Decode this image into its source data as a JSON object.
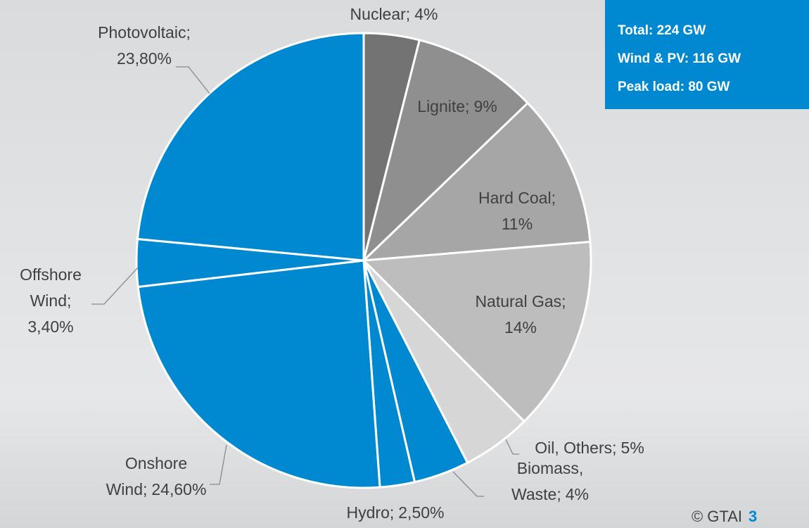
{
  "chart_data": {
    "type": "pie",
    "categories": [
      "Nuclear;",
      "Lignite;",
      "Hard Coal;",
      "Natural Gas;",
      "Oil, Others;",
      "Biomass, Waste;",
      "Hydro;",
      "Onshore Wind;",
      "Offshore Wind;",
      "Photovoltaic;"
    ],
    "values": [
      4,
      9,
      11,
      14,
      5,
      4,
      2.5,
      24.6,
      3.4,
      23.8
    ],
    "value_labels": [
      "4%",
      "9%",
      "11%",
      "14%",
      "5%",
      "4%",
      "2,50%",
      "24,60%",
      "3,40%",
      "23,80%"
    ],
    "colors": [
      "#737373",
      "#8f8f8f",
      "#a6a6a6",
      "#bdbdbd",
      "#d6d6d6",
      "#0088d1",
      "#0088d1",
      "#0088d1",
      "#0088d1",
      "#0088d1"
    ]
  },
  "info_box": [
    "Total: 224 GW",
    "Wind & PV: 116 GW",
    "Peak load: 80 GW"
  ],
  "footer": {
    "copyright": "© GTAI",
    "page": "3"
  }
}
